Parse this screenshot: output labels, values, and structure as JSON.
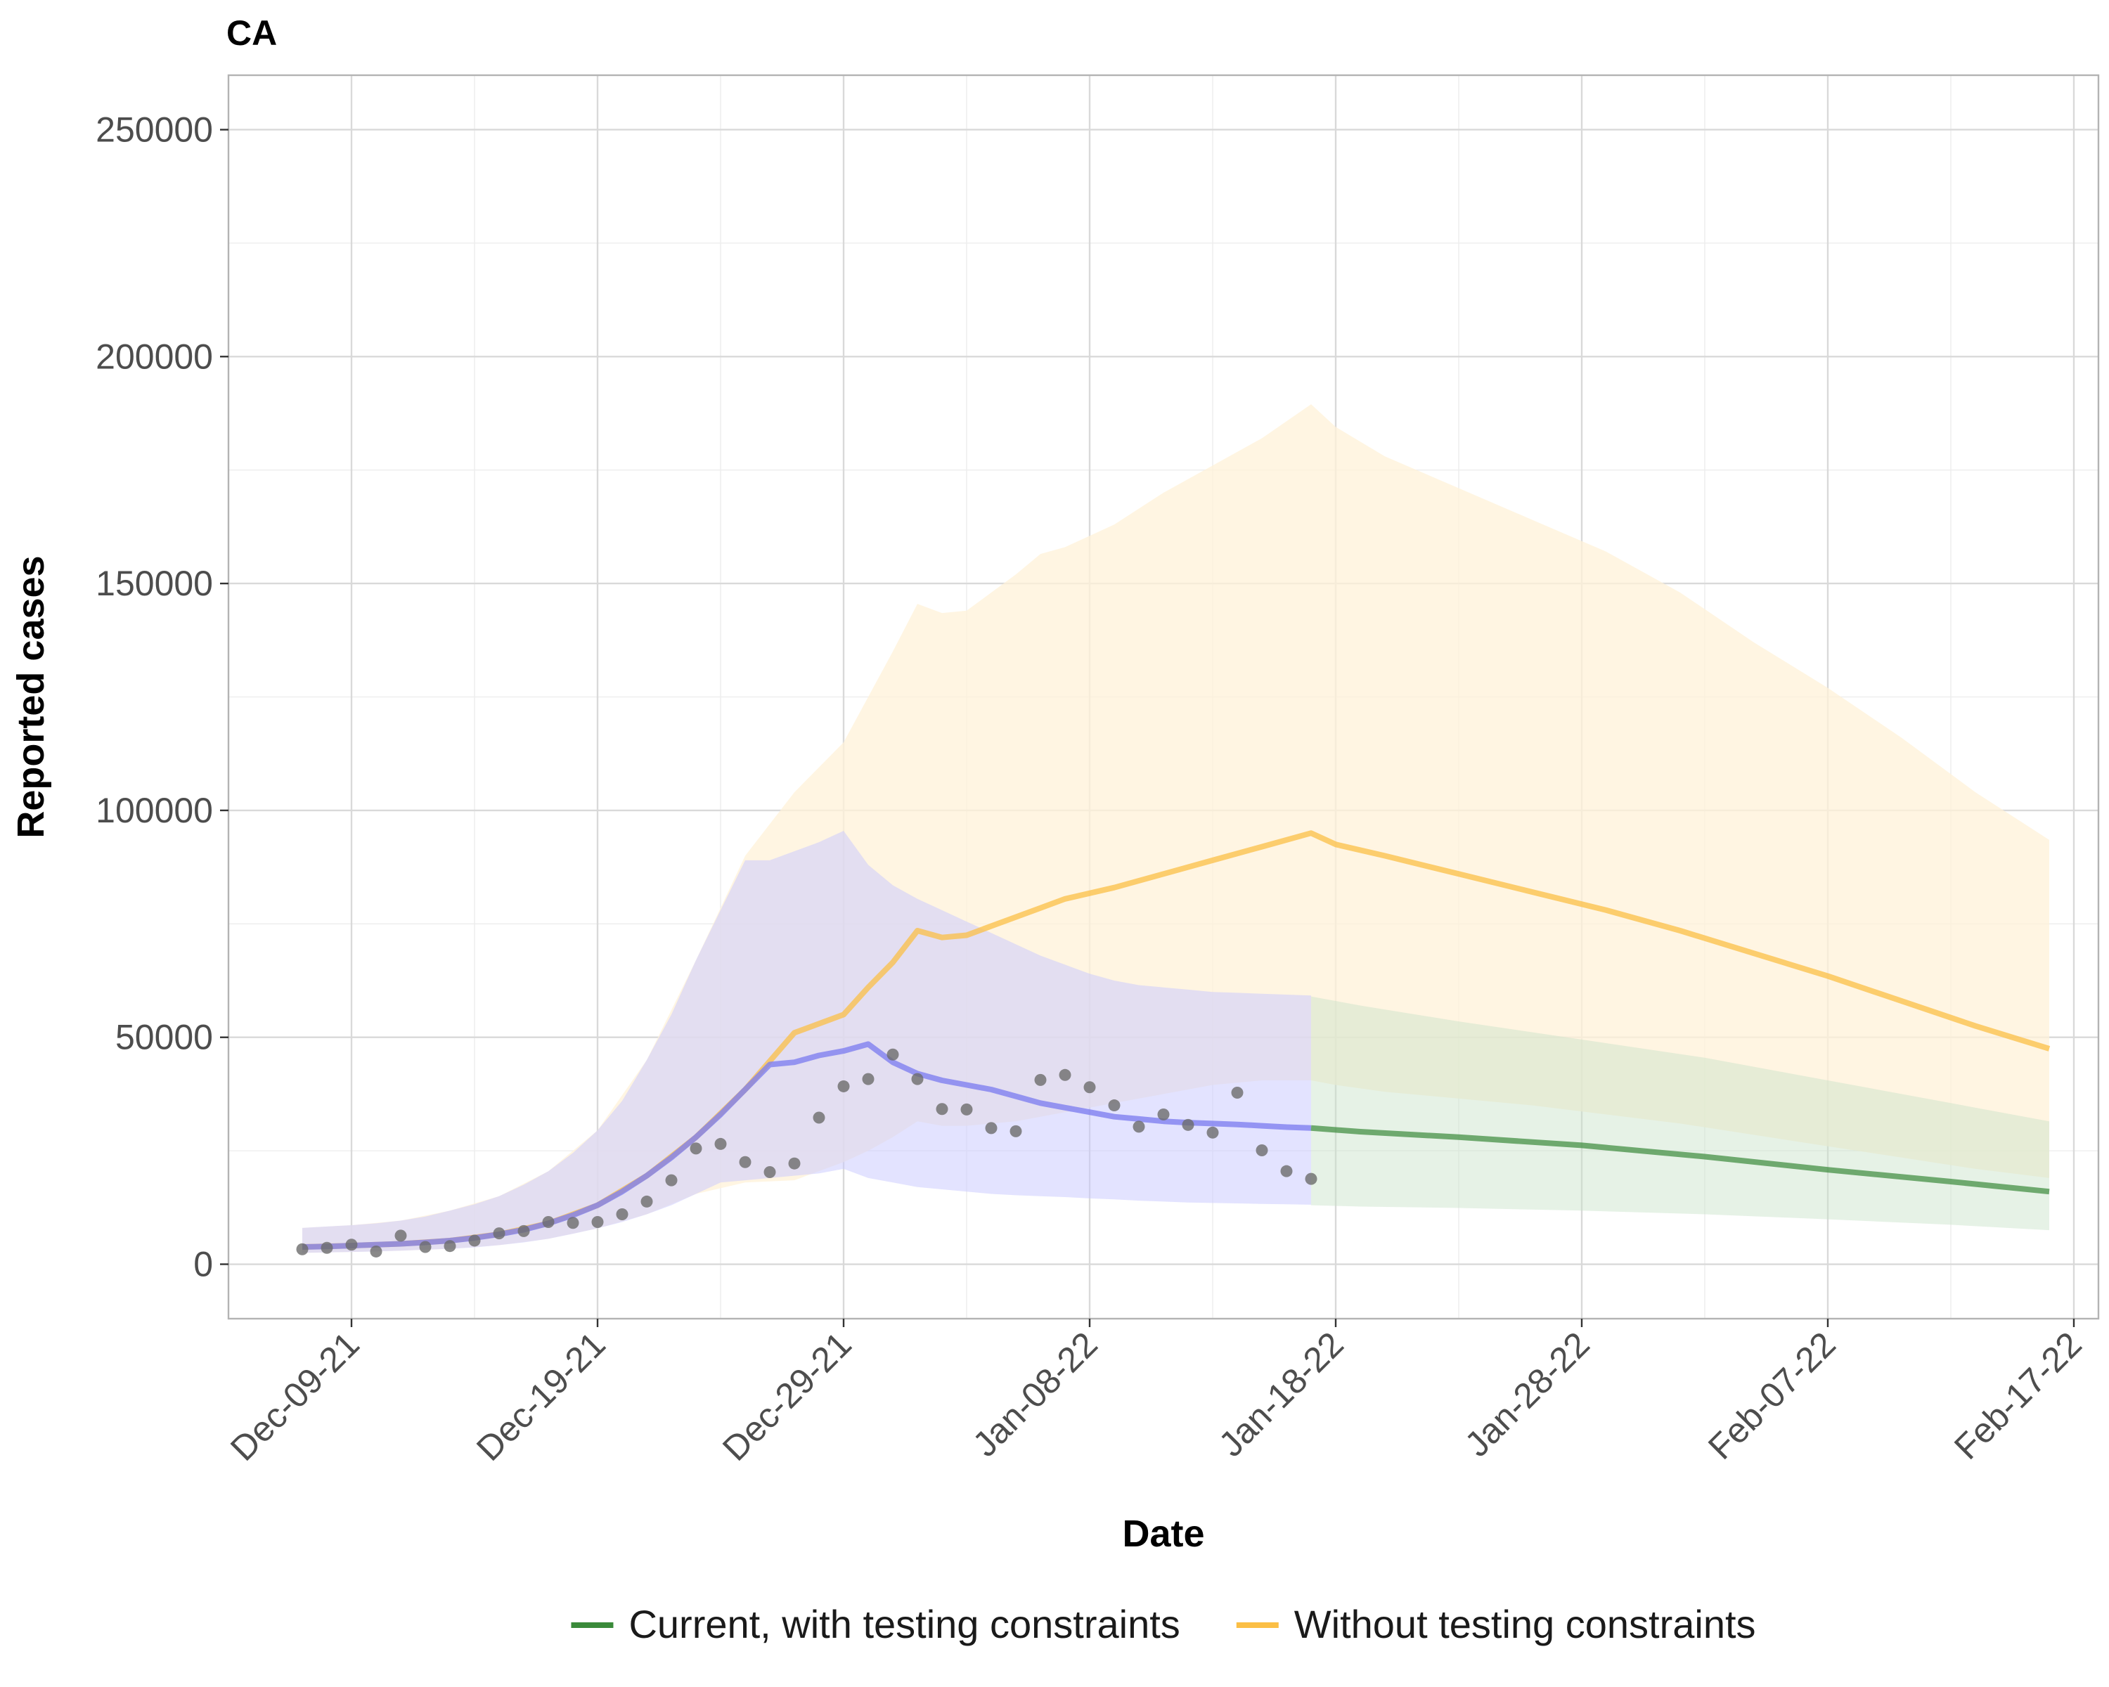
{
  "chart_data": {
    "type": "line",
    "title": "CA",
    "xlabel": "Date",
    "ylabel": "Reported cases",
    "x_tick_labels": [
      "Dec-09-21",
      "Dec-19-21",
      "Dec-29-21",
      "Jan-08-22",
      "Jan-18-22",
      "Jan-28-22",
      "Feb-07-22",
      "Feb-17-22"
    ],
    "y_tick_labels": [
      "0",
      "50000",
      "100000",
      "150000",
      "200000",
      "250000"
    ],
    "xlim": [
      "2021-12-04",
      "2022-02-18"
    ],
    "ylim": [
      -12000,
      262000
    ],
    "grid": true,
    "legend_position": "bottom",
    "legend": [
      {
        "label": "Current, with testing constraints",
        "color": "#3a8a3a"
      },
      {
        "label": "Without testing constraints",
        "color": "#fbbf45"
      }
    ],
    "colors": {
      "observed_points": "#6b6b6b",
      "fit_line": "#8080f0",
      "fit_band": "#c8c8ff",
      "current_line": "#3a8a3a",
      "current_band": "#c7e3c7",
      "without_line": "#fbbf45",
      "without_band": "#fff2d8"
    },
    "series": [
      {
        "id": "observed",
        "kind": "points",
        "x": [
          "2021-12-07",
          "2021-12-08",
          "2021-12-09",
          "2021-12-10",
          "2021-12-11",
          "2021-12-12",
          "2021-12-13",
          "2021-12-14",
          "2021-12-15",
          "2021-12-16",
          "2021-12-17",
          "2021-12-18",
          "2021-12-19",
          "2021-12-20",
          "2021-12-21",
          "2021-12-22",
          "2021-12-23",
          "2021-12-24",
          "2021-12-25",
          "2021-12-26",
          "2021-12-27",
          "2021-12-28",
          "2021-12-29",
          "2021-12-30",
          "2021-12-31",
          "2022-01-01",
          "2022-01-02",
          "2022-01-03",
          "2022-01-04",
          "2022-01-05",
          "2022-01-06",
          "2022-01-07",
          "2022-01-08",
          "2022-01-09",
          "2022-01-10",
          "2022-01-11",
          "2022-01-12",
          "2022-01-13",
          "2022-01-14",
          "2022-01-15",
          "2022-01-16",
          "2022-01-17"
        ],
        "y": [
          3300,
          3600,
          4300,
          2800,
          6300,
          3800,
          4000,
          5200,
          6800,
          7300,
          9300,
          9100,
          9300,
          11000,
          13800,
          18500,
          25500,
          26500,
          22500,
          20300,
          22200,
          32300,
          39200,
          40800,
          46200,
          40800,
          34200,
          34100,
          30000,
          29300,
          40600,
          41700,
          39000,
          35000,
          30300,
          33000,
          30700,
          29000,
          37800,
          25100,
          20500,
          18800
        ]
      },
      {
        "id": "fit",
        "kind": "line_band",
        "x": [
          "2021-12-07",
          "2021-12-08",
          "2021-12-09",
          "2021-12-10",
          "2021-12-11",
          "2021-12-12",
          "2021-12-13",
          "2021-12-14",
          "2021-12-15",
          "2021-12-16",
          "2021-12-17",
          "2021-12-18",
          "2021-12-19",
          "2021-12-20",
          "2021-12-21",
          "2021-12-22",
          "2021-12-23",
          "2021-12-24",
          "2021-12-25",
          "2021-12-26",
          "2021-12-27",
          "2021-12-28",
          "2021-12-29",
          "2021-12-30",
          "2021-12-31",
          "2022-01-01",
          "2022-01-02",
          "2022-01-03",
          "2022-01-04",
          "2022-01-05",
          "2022-01-06",
          "2022-01-07",
          "2022-01-08",
          "2022-01-09",
          "2022-01-10",
          "2022-01-11",
          "2022-01-12",
          "2022-01-13",
          "2022-01-14",
          "2022-01-15",
          "2022-01-16",
          "2022-01-17"
        ],
        "y": [
          3800,
          3900,
          4100,
          4300,
          4500,
          4800,
          5200,
          5800,
          6600,
          7600,
          9000,
          10800,
          13000,
          16000,
          19500,
          23500,
          28000,
          33000,
          38500,
          44000,
          44500,
          46000,
          47000,
          48500,
          44500,
          42000,
          40500,
          39500,
          38500,
          37000,
          35500,
          34500,
          33500,
          32500,
          32000,
          31500,
          31200,
          31000,
          30800,
          30500,
          30200,
          30000
        ],
        "lower": [
          2500,
          2600,
          2700,
          2800,
          3000,
          3200,
          3400,
          3700,
          4200,
          4800,
          5600,
          6700,
          7900,
          9300,
          11000,
          13000,
          15500,
          18000,
          18500,
          19000,
          19500,
          20000,
          21000,
          19000,
          18000,
          17000,
          16500,
          16000,
          15500,
          15200,
          15000,
          14800,
          14500,
          14300,
          14000,
          13800,
          13600,
          13500,
          13400,
          13300,
          13200,
          13100
        ],
        "upper": [
          8000,
          8300,
          8600,
          9000,
          9600,
          10500,
          11800,
          13200,
          15000,
          17500,
          20500,
          24500,
          29500,
          36000,
          45000,
          55000,
          67000,
          78000,
          89000,
          89000,
          91000,
          93000,
          95500,
          88000,
          83500,
          80500,
          78000,
          75500,
          73000,
          70500,
          68000,
          66000,
          64000,
          62500,
          61500,
          61000,
          60500,
          60000,
          59800,
          59600,
          59400,
          59200
        ]
      },
      {
        "id": "without",
        "name": "Without testing constraints",
        "kind": "line_band",
        "x": [
          "2021-12-07",
          "2021-12-09",
          "2021-12-11",
          "2021-12-13",
          "2021-12-15",
          "2021-12-17",
          "2021-12-19",
          "2021-12-21",
          "2021-12-23",
          "2021-12-25",
          "2021-12-27",
          "2021-12-29",
          "2021-12-30",
          "2021-12-31",
          "2022-01-01",
          "2022-01-02",
          "2022-01-03",
          "2022-01-04",
          "2022-01-05",
          "2022-01-06",
          "2022-01-07",
          "2022-01-09",
          "2022-01-11",
          "2022-01-13",
          "2022-01-15",
          "2022-01-17",
          "2022-01-18",
          "2022-01-20",
          "2022-01-23",
          "2022-01-26",
          "2022-01-29",
          "2022-02-01",
          "2022-02-04",
          "2022-02-07",
          "2022-02-10",
          "2022-02-13",
          "2022-02-16"
        ],
        "y": [
          3800,
          4100,
          4500,
          5200,
          6600,
          9000,
          13000,
          19500,
          28000,
          38500,
          51000,
          55000,
          61000,
          66500,
          73500,
          72000,
          72500,
          74500,
          76500,
          78500,
          80500,
          83000,
          86000,
          89000,
          92000,
          95000,
          92500,
          90000,
          86000,
          82000,
          78000,
          73500,
          68500,
          63500,
          58000,
          52500,
          47500
        ],
        "lower": [
          2500,
          2700,
          3000,
          3400,
          4200,
          5600,
          7900,
          11000,
          15500,
          18000,
          18500,
          22500,
          25000,
          28000,
          31500,
          30500,
          30500,
          31000,
          31500,
          32500,
          33500,
          35500,
          37500,
          39500,
          40500,
          40500,
          39500,
          38000,
          36500,
          35000,
          33000,
          31000,
          28500,
          26000,
          23500,
          21000,
          19000
        ],
        "upper": [
          8000,
          8600,
          9600,
          11800,
          15000,
          20500,
          29500,
          45000,
          67000,
          90000,
          104000,
          115000,
          125000,
          135000,
          145500,
          143500,
          144000,
          148000,
          152000,
          156500,
          158000,
          163000,
          170000,
          176000,
          182000,
          189500,
          184500,
          178000,
          171000,
          164000,
          157000,
          148000,
          137000,
          127000,
          116000,
          104000,
          93500
        ]
      },
      {
        "id": "current",
        "name": "Current, with testing constraints",
        "kind": "line_band",
        "x": [
          "2022-01-17",
          "2022-01-19",
          "2022-01-23",
          "2022-01-28",
          "2022-02-02",
          "2022-02-07",
          "2022-02-12",
          "2022-02-16"
        ],
        "y": [
          30000,
          29200,
          28000,
          26200,
          23700,
          20800,
          18200,
          16000
        ],
        "lower": [
          13000,
          12700,
          12400,
          11800,
          11000,
          9900,
          8700,
          7500
        ],
        "upper": [
          59000,
          57000,
          53500,
          49500,
          45500,
          40500,
          35500,
          31500
        ]
      }
    ]
  }
}
